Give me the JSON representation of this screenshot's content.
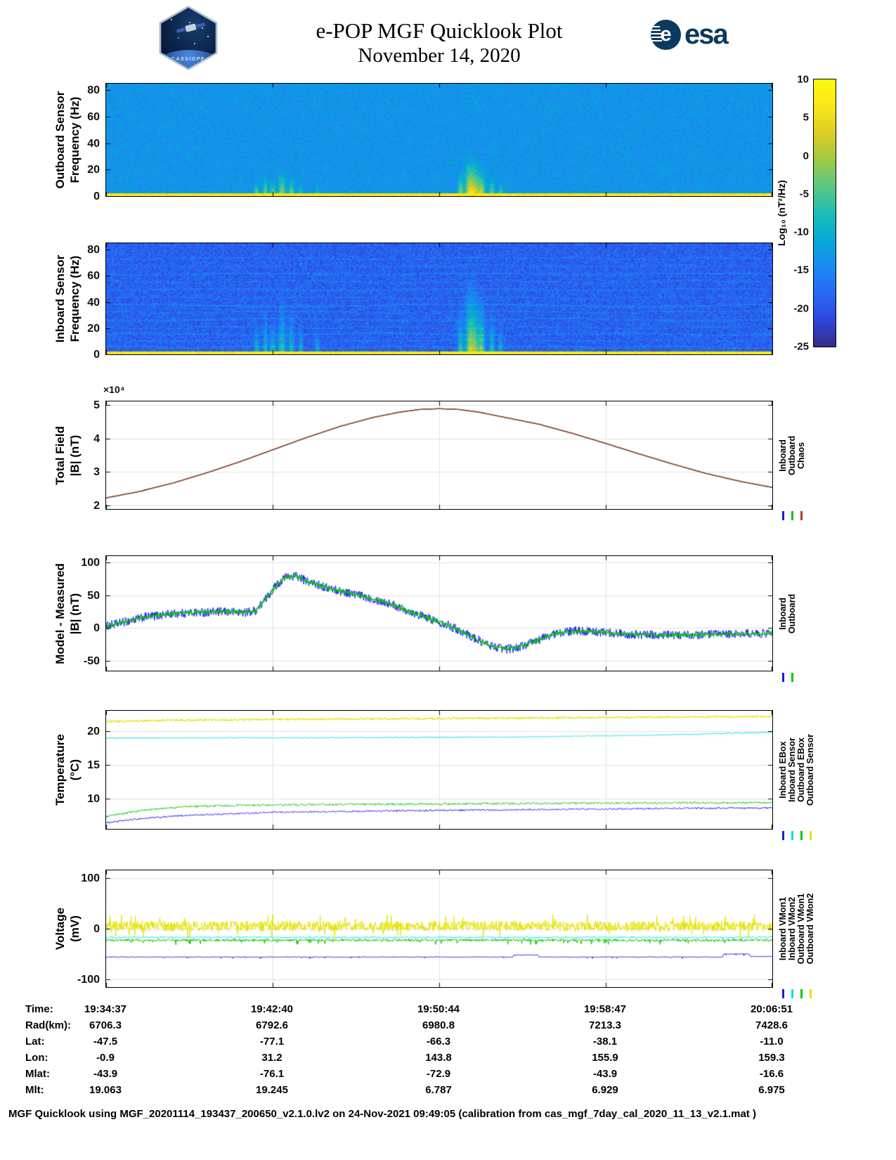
{
  "header": {
    "title_line1": "e-POP MGF Quicklook Plot",
    "title_line2": "November 14, 2020",
    "esa_text": "esa",
    "esa_emblem_letter": "e",
    "mission_text": "CASSIOPE"
  },
  "colorbar": {
    "label": "Log₁₀ (nT²/Hz)",
    "ticks": [
      10,
      5,
      0,
      -5,
      -10,
      -15,
      -20,
      -25
    ],
    "range": [
      -25,
      10
    ]
  },
  "time_axis": {
    "tick_labels": [
      "19:34:37",
      "19:42:40",
      "19:50:44",
      "19:58:47",
      "20:06:51"
    ]
  },
  "chart_data": [
    {
      "id": "outboard-spectrogram",
      "type": "heatmap",
      "ylabel1": "Outboard Sensor",
      "ylabel2": "Frequency (Hz)",
      "yticks": [
        0,
        20,
        40,
        60,
        80
      ],
      "yrange": [
        0,
        85
      ],
      "vmin": -25,
      "vmax": 10,
      "base": -13.3,
      "noise": 1.7,
      "seed": 11,
      "band": {
        "fmax": 2.4,
        "value": 6.5
      },
      "streaks": [
        {
          "x": 0.225,
          "w": 0.0035,
          "fmax": 14,
          "v": 15
        },
        {
          "x": 0.238,
          "w": 0.003,
          "fmax": 20,
          "v": 16
        },
        {
          "x": 0.249,
          "w": 0.004,
          "fmax": 16,
          "v": 15
        },
        {
          "x": 0.263,
          "w": 0.005,
          "fmax": 25,
          "v": 17
        },
        {
          "x": 0.277,
          "w": 0.004,
          "fmax": 18,
          "v": 15
        },
        {
          "x": 0.291,
          "w": 0.003,
          "fmax": 12,
          "v": 13
        },
        {
          "x": 0.316,
          "w": 0.003,
          "fmax": 10,
          "v": 12
        },
        {
          "x": 0.531,
          "w": 0.004,
          "fmax": 22,
          "v": 16
        },
        {
          "x": 0.544,
          "w": 0.006,
          "fmax": 38,
          "v": 19
        },
        {
          "x": 0.553,
          "w": 0.007,
          "fmax": 34,
          "v": 19
        },
        {
          "x": 0.563,
          "w": 0.005,
          "fmax": 26,
          "v": 17
        },
        {
          "x": 0.578,
          "w": 0.004,
          "fmax": 18,
          "v": 15
        },
        {
          "x": 0.591,
          "w": 0.003,
          "fmax": 14,
          "v": 14
        },
        {
          "x": 0.712,
          "w": 0.007,
          "fmax": 5,
          "v": 9
        }
      ]
    },
    {
      "id": "inboard-spectrogram",
      "type": "heatmap",
      "ylabel1": "Inboard Sensor",
      "ylabel2": "Frequency (Hz)",
      "yticks": [
        0,
        20,
        40,
        60,
        80
      ],
      "yrange": [
        0,
        85
      ],
      "vmin": -25,
      "vmax": 10,
      "base": -18.8,
      "noise": 2.4,
      "seed": 77,
      "band": {
        "fmax": 2.4,
        "value": 6.5
      },
      "streaks": [
        {
          "x": 0.225,
          "w": 0.0035,
          "fmax": 30,
          "v": 13
        },
        {
          "x": 0.238,
          "w": 0.003,
          "fmax": 42,
          "v": 14
        },
        {
          "x": 0.249,
          "w": 0.004,
          "fmax": 34,
          "v": 13
        },
        {
          "x": 0.263,
          "w": 0.005,
          "fmax": 52,
          "v": 15
        },
        {
          "x": 0.277,
          "w": 0.004,
          "fmax": 42,
          "v": 13
        },
        {
          "x": 0.291,
          "w": 0.003,
          "fmax": 30,
          "v": 12
        },
        {
          "x": 0.316,
          "w": 0.003,
          "fmax": 24,
          "v": 11
        },
        {
          "x": 0.531,
          "w": 0.004,
          "fmax": 46,
          "v": 15
        },
        {
          "x": 0.544,
          "w": 0.006,
          "fmax": 72,
          "v": 18
        },
        {
          "x": 0.553,
          "w": 0.007,
          "fmax": 66,
          "v": 18
        },
        {
          "x": 0.563,
          "w": 0.005,
          "fmax": 56,
          "v": 16
        },
        {
          "x": 0.578,
          "w": 0.004,
          "fmax": 40,
          "v": 14
        },
        {
          "x": 0.591,
          "w": 0.003,
          "fmax": 30,
          "v": 12
        },
        {
          "x": 0.712,
          "w": 0.007,
          "fmax": 8,
          "v": 8
        }
      ],
      "hlines": [
        {
          "f": 6,
          "v": 2.5,
          "hw": 0.7,
          "wave": 0.4,
          "wfreq": 30,
          "phase": 1
        },
        {
          "f": 11,
          "v": 2.2,
          "hw": 0.6,
          "wave": 0.5,
          "wfreq": 22,
          "phase": 2
        },
        {
          "f": 16,
          "v": 2.8,
          "hw": 0.7,
          "wave": 0.7,
          "wfreq": 18,
          "phase": 0.5
        },
        {
          "f": 21,
          "v": 2.0,
          "hw": 0.6,
          "wave": 0.5,
          "wfreq": 26,
          "phase": 3
        },
        {
          "f": 27,
          "v": 2.6,
          "hw": 0.7,
          "wave": 0.8,
          "wfreq": 15,
          "phase": 4
        },
        {
          "f": 33,
          "v": 2.2,
          "hw": 0.6,
          "wave": 0.6,
          "wfreq": 20,
          "phase": 2.5
        },
        {
          "f": 38,
          "v": 2.9,
          "hw": 0.8,
          "wave": 1.0,
          "wfreq": 12,
          "phase": 1.5
        },
        {
          "f": 44,
          "v": 2.1,
          "hw": 0.6,
          "wave": 0.6,
          "wfreq": 24,
          "phase": 0
        },
        {
          "f": 50,
          "v": 2.4,
          "hw": 0.7,
          "wave": 0.5,
          "wfreq": 17,
          "phase": 5
        },
        {
          "f": 56,
          "v": 2.2,
          "hw": 0.6,
          "wave": 0.7,
          "wfreq": 21,
          "phase": 2
        },
        {
          "f": 62,
          "v": 2.6,
          "hw": 0.7,
          "wave": 0.4,
          "wfreq": 19,
          "phase": 3.5
        },
        {
          "f": 68,
          "v": 2.0,
          "hw": 0.6,
          "wave": 0.5,
          "wfreq": 23,
          "phase": 1
        },
        {
          "f": 74,
          "v": 2.3,
          "hw": 0.6,
          "wave": 0.6,
          "wfreq": 16,
          "phase": 4.5
        }
      ]
    },
    {
      "id": "total-field",
      "type": "line",
      "ylabel1": "Total Field",
      "ylabel2": "|B| (nT)",
      "exp_label": "×10⁴",
      "yticks": [
        2,
        3,
        4,
        5
      ],
      "yrange": [
        1.9,
        5.1
      ],
      "x": [
        0,
        0.05,
        0.1,
        0.15,
        0.2,
        0.25,
        0.3,
        0.35,
        0.4,
        0.44,
        0.47,
        0.5,
        0.53,
        0.56,
        0.6,
        0.65,
        0.7,
        0.75,
        0.8,
        0.85,
        0.9,
        0.95,
        1
      ],
      "y": [
        2.23,
        2.42,
        2.67,
        2.97,
        3.3,
        3.66,
        4.02,
        4.35,
        4.62,
        4.78,
        4.86,
        4.885,
        4.86,
        4.78,
        4.62,
        4.42,
        4.15,
        3.85,
        3.54,
        3.24,
        2.96,
        2.73,
        2.54
      ],
      "series": [
        {
          "name": "Inboard",
          "color": "#1a1aee",
          "width": 1.3
        },
        {
          "name": "Outboard",
          "color": "#00c800",
          "width": 1.3
        },
        {
          "name": "Chaos",
          "color": "#b43a26",
          "width": 1.3
        }
      ]
    },
    {
      "id": "model-minus-measured",
      "type": "line",
      "ylabel1": "Model - Measured",
      "ylabel2": "|B| (nT)",
      "yticks": [
        -50,
        0,
        50,
        100
      ],
      "yrange": [
        -65,
        110
      ],
      "x": [
        0,
        0.03,
        0.06,
        0.1,
        0.14,
        0.18,
        0.21,
        0.225,
        0.24,
        0.255,
        0.27,
        0.285,
        0.3,
        0.33,
        0.36,
        0.4,
        0.43,
        0.45,
        0.47,
        0.49,
        0.51,
        0.53,
        0.55,
        0.57,
        0.585,
        0.6,
        0.62,
        0.64,
        0.66,
        0.68,
        0.71,
        0.75,
        0.8,
        0.85,
        0.9,
        0.95,
        1
      ],
      "y": [
        3,
        10,
        17,
        22,
        24,
        25,
        24,
        27,
        45,
        65,
        78,
        80,
        72,
        62,
        55,
        45,
        36,
        28,
        20,
        13,
        6,
        -3,
        -14,
        -24,
        -29,
        -32,
        -29,
        -22,
        -13,
        -7,
        -4,
        -7,
        -10,
        -11,
        -10,
        -9,
        -8
      ],
      "series": [
        {
          "name": "Inboard",
          "color": "#1a1aee",
          "noise": 7,
          "samples": 1400,
          "width": 1
        },
        {
          "name": "Outboard",
          "color": "#00c800",
          "noise": 2.4,
          "samples": 1100,
          "width": 1.4
        }
      ]
    },
    {
      "id": "temperature",
      "type": "line",
      "ylabel1": "Temperature",
      "ylabel2": "(°C)",
      "yticks": [
        10,
        15,
        20
      ],
      "yrange": [
        5.5,
        23
      ],
      "series": [
        {
          "name": "Inboard EBox",
          "color": "#1a1aee",
          "x": [
            0,
            0.05,
            0.12,
            0.25,
            0.5,
            0.8,
            1
          ],
          "y": [
            6.4,
            7,
            7.5,
            7.95,
            8.25,
            8.5,
            8.6
          ],
          "noise": 0.12,
          "width": 1
        },
        {
          "name": "Inboard Sensor",
          "color": "#00dede",
          "x": [
            0,
            0.3,
            0.6,
            0.8,
            1
          ],
          "y": [
            18.95,
            19,
            19.1,
            19.35,
            19.8
          ],
          "noise": 0.07,
          "width": 1
        },
        {
          "name": "Outboard EBox",
          "color": "#00c800",
          "x": [
            0,
            0.05,
            0.12,
            0.2,
            0.4,
            0.7,
            1
          ],
          "y": [
            7.3,
            8.2,
            8.8,
            9,
            9.15,
            9.3,
            9.4
          ],
          "noise": 0.15,
          "width": 1
        },
        {
          "name": "Outboard Sensor",
          "color": "#e3e300",
          "x": [
            0,
            0.1,
            0.3,
            0.6,
            0.9,
            1
          ],
          "y": [
            21.4,
            21.6,
            21.75,
            21.9,
            22.1,
            22.15
          ],
          "noise": 0.12,
          "width": 1.2
        }
      ]
    },
    {
      "id": "voltage",
      "type": "line",
      "ylabel1": "Voltage",
      "ylabel2": "(mV)",
      "yticks": [
        -100,
        0,
        100
      ],
      "yrange": [
        -115,
        115
      ],
      "series": [
        {
          "name": "Inboard VMon1",
          "color": "#1a1aee",
          "x": [
            0,
            0.61,
            0.612,
            0.648,
            0.65,
            0.925,
            0.927,
            0.965,
            0.967,
            1
          ],
          "y": [
            -55,
            -55,
            -51,
            -51,
            -55,
            -55,
            -49,
            -49,
            -54,
            -54
          ],
          "noise": 1.6,
          "spiky": true,
          "bias": -1,
          "samples": 1200,
          "width": 1
        },
        {
          "name": "Inboard VMon2",
          "color": "#00dede",
          "x": [
            0,
            1
          ],
          "y": [
            -17,
            -17
          ],
          "noise": 1.5,
          "samples": 900,
          "width": 1
        },
        {
          "name": "Outboard VMon1",
          "color": "#00c800",
          "x": [
            0,
            1
          ],
          "y": [
            -20,
            -20
          ],
          "noise": 5,
          "spiky": true,
          "bias": -1,
          "samples": 1300,
          "width": 1
        },
        {
          "name": "Outboard VMon2",
          "color": "#e3e300",
          "x": [
            0,
            1
          ],
          "y": [
            5,
            5
          ],
          "noise": 10,
          "spiky": true,
          "samples": 1600,
          "width": 1
        }
      ]
    }
  ],
  "bottom_table": {
    "rows": [
      {
        "label": "Time:",
        "values": [
          "19:34:37",
          "19:42:40",
          "19:50:44",
          "19:58:47",
          "20:06:51"
        ]
      },
      {
        "label": "Rad(km):",
        "values": [
          "6706.3",
          "6792.6",
          "6980.8",
          "7213.3",
          "7428.6"
        ]
      },
      {
        "label": "Lat:",
        "values": [
          "-47.5",
          "-77.1",
          "-66.3",
          "-38.1",
          "-11.0"
        ]
      },
      {
        "label": "Lon:",
        "values": [
          "-0.9",
          "31.2",
          "143.8",
          "155.9",
          "159.3"
        ]
      },
      {
        "label": "Mlat:",
        "values": [
          "-43.9",
          "-76.1",
          "-72.9",
          "-43.9",
          "-16.6"
        ]
      },
      {
        "label": "Mlt:",
        "values": [
          "19.063",
          "19.245",
          "6.787",
          "6.929",
          "6.975"
        ]
      }
    ]
  },
  "footer": "MGF Quicklook using MGF_20201114_193437_200650_v2.1.0.lv2 on 24-Nov-2021 09:49:05 (calibration from cas_mgf_7day_cal_2020_11_13_v2.1.mat )"
}
